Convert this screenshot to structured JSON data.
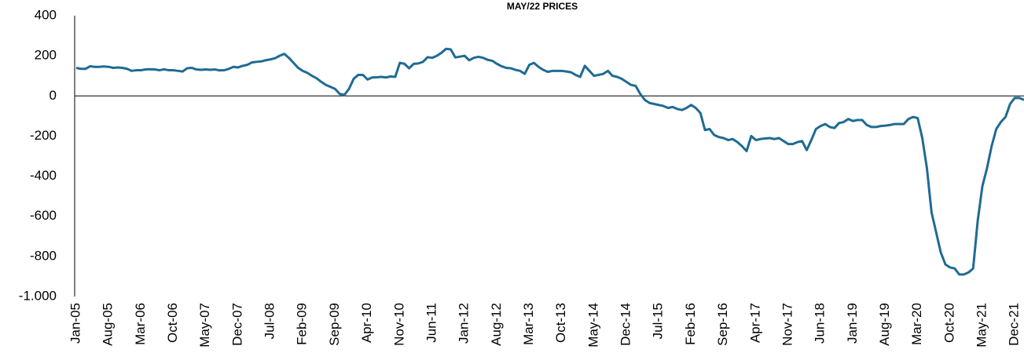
{
  "chart_data": {
    "type": "line",
    "title": "MAY/22 PRICES",
    "categories": [
      "Jan-05",
      null,
      null,
      null,
      null,
      null,
      null,
      "Aug-05",
      null,
      null,
      null,
      null,
      null,
      null,
      "Mar-06",
      null,
      null,
      null,
      null,
      null,
      null,
      "Oct-06",
      null,
      null,
      null,
      null,
      null,
      null,
      "May-07",
      null,
      null,
      null,
      null,
      null,
      null,
      "Dec-07",
      null,
      null,
      null,
      null,
      null,
      null,
      "Jul-08",
      null,
      null,
      null,
      null,
      null,
      null,
      "Feb-09",
      null,
      null,
      null,
      null,
      null,
      null,
      "Sep-09",
      null,
      null,
      null,
      null,
      null,
      null,
      "Apr-10",
      null,
      null,
      null,
      null,
      null,
      null,
      "Nov-10",
      null,
      null,
      null,
      null,
      null,
      null,
      "Jun-11",
      null,
      null,
      null,
      null,
      null,
      null,
      "Jan-12",
      null,
      null,
      null,
      null,
      null,
      null,
      "Aug-12",
      null,
      null,
      null,
      null,
      null,
      null,
      "Mar-13",
      null,
      null,
      null,
      null,
      null,
      null,
      "Oct-13",
      null,
      null,
      null,
      null,
      null,
      null,
      "May-14",
      null,
      null,
      null,
      null,
      null,
      null,
      "Dec-14",
      null,
      null,
      null,
      null,
      null,
      null,
      "Jul-15",
      null,
      null,
      null,
      null,
      null,
      null,
      "Feb-16",
      null,
      null,
      null,
      null,
      null,
      null,
      "Sep-16",
      null,
      null,
      null,
      null,
      null,
      null,
      "Apr-17",
      null,
      null,
      null,
      null,
      null,
      null,
      "Nov-17",
      null,
      null,
      null,
      null,
      null,
      null,
      "Jun-18",
      null,
      null,
      null,
      null,
      null,
      null,
      "Jan-19",
      null,
      null,
      null,
      null,
      null,
      null,
      "Aug-19",
      null,
      null,
      null,
      null,
      null,
      null,
      "Mar-20",
      null,
      null,
      null,
      null,
      null,
      null,
      "Oct-20",
      null,
      null,
      null,
      null,
      null,
      null,
      "May-21",
      null,
      null,
      null,
      null,
      null,
      null,
      "Dec-21",
      null,
      null
    ],
    "values": [
      140,
      135,
      135,
      148,
      145,
      145,
      147,
      145,
      140,
      142,
      140,
      135,
      125,
      128,
      128,
      132,
      133,
      132,
      128,
      133,
      128,
      128,
      125,
      122,
      138,
      140,
      132,
      130,
      132,
      130,
      132,
      127,
      128,
      135,
      145,
      142,
      150,
      155,
      167,
      170,
      172,
      178,
      182,
      188,
      200,
      210,
      190,
      165,
      140,
      125,
      115,
      100,
      88,
      70,
      55,
      45,
      35,
      10,
      5,
      35,
      85,
      105,
      105,
      82,
      92,
      93,
      95,
      92,
      97,
      95,
      165,
      160,
      138,
      160,
      162,
      170,
      193,
      190,
      200,
      215,
      235,
      232,
      192,
      196,
      200,
      178,
      190,
      195,
      190,
      180,
      175,
      160,
      148,
      140,
      138,
      130,
      125,
      110,
      155,
      165,
      145,
      130,
      120,
      125,
      125,
      125,
      122,
      118,
      105,
      95,
      150,
      125,
      100,
      105,
      110,
      125,
      100,
      95,
      85,
      70,
      55,
      50,
      10,
      -20,
      -35,
      -40,
      -45,
      -50,
      -60,
      -55,
      -65,
      -70,
      -60,
      -45,
      -60,
      -85,
      -170,
      -165,
      -195,
      -205,
      -210,
      -220,
      -215,
      -230,
      -250,
      -275,
      -200,
      -220,
      -215,
      -212,
      -210,
      -215,
      -210,
      -225,
      -240,
      -240,
      -230,
      -225,
      -270,
      -220,
      -165,
      -150,
      -140,
      -155,
      -160,
      -135,
      -130,
      -115,
      -125,
      -120,
      -120,
      -145,
      -155,
      -155,
      -150,
      -148,
      -145,
      -140,
      -140,
      -140,
      -115,
      -105,
      -110,
      -210,
      -360,
      -580,
      -680,
      -780,
      -840,
      -855,
      -860,
      -890,
      -890,
      -880,
      -860,
      -620,
      -450,
      -360,
      -250,
      -165,
      -130,
      -105,
      -40,
      -10,
      -10,
      -20
    ],
    "color": "#1f6b93",
    "ylim": [
      -1000,
      400
    ],
    "yticks": [
      {
        "value": -1000,
        "label": "-1.000"
      },
      -800,
      -600,
      -400,
      -200,
      0,
      200,
      400
    ]
  }
}
